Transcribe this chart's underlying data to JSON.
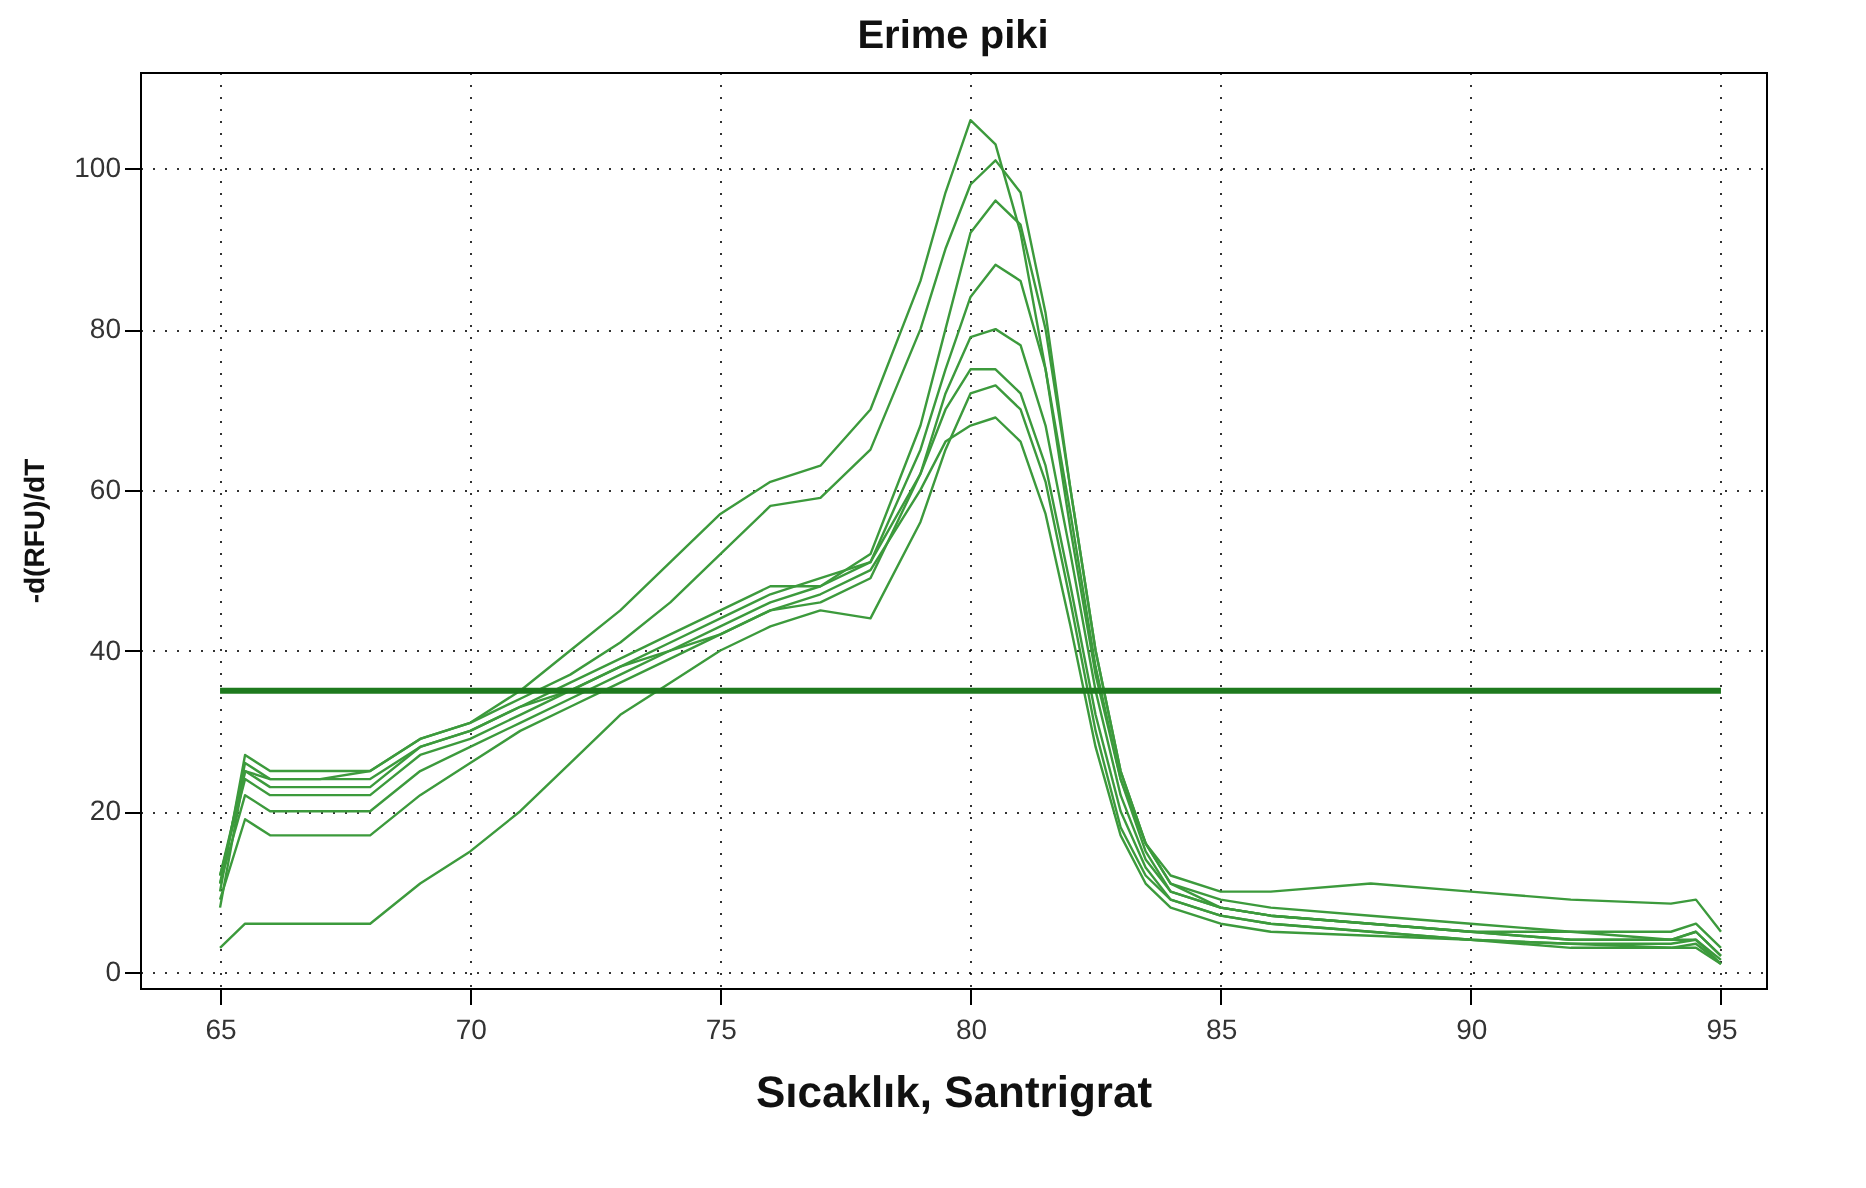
{
  "chart_data": {
    "type": "line",
    "title": "Erime piki",
    "xlabel": "Sıcaklık, Santrigrat",
    "ylabel": "-d(RFU)/dT",
    "x": [
      65,
      65.5,
      66,
      67,
      68,
      69,
      70,
      71,
      72,
      73,
      74,
      75,
      76,
      77,
      78,
      79,
      79.5,
      80,
      80.5,
      81,
      81.5,
      82,
      82.5,
      83,
      83.5,
      84,
      85,
      86,
      88,
      90,
      92,
      94,
      94.5,
      95
    ],
    "series": [
      {
        "color": "#3c9a3c",
        "values": [
          8,
          25,
          24,
          24,
          25,
          29,
          31,
          35,
          40,
          45,
          51,
          57,
          61,
          63,
          70,
          86,
          97,
          106,
          103,
          92,
          75,
          55,
          37,
          24,
          16,
          12,
          10,
          10,
          11,
          10,
          9,
          8.5,
          9,
          5
        ]
      },
      {
        "color": "#3c9a3c",
        "values": [
          10,
          27,
          25,
          25,
          25,
          29,
          31,
          34,
          37,
          41,
          46,
          52,
          58,
          59,
          65,
          80,
          90,
          98,
          101,
          97,
          82,
          60,
          40,
          25,
          16,
          11,
          9,
          8,
          7,
          6,
          5,
          5,
          6,
          3
        ]
      },
      {
        "color": "#3c9a3c",
        "values": [
          11,
          26,
          24,
          24,
          24,
          28,
          30,
          33,
          36,
          39,
          42,
          45,
          48,
          48,
          52,
          68,
          80,
          92,
          96,
          93,
          80,
          60,
          40,
          25,
          16,
          11,
          8,
          7,
          6,
          5,
          5,
          4,
          5,
          2
        ]
      },
      {
        "color": "#3c9a3c",
        "values": [
          12,
          25,
          23,
          23,
          23,
          28,
          30,
          33,
          35,
          38,
          41,
          44,
          47,
          49,
          51,
          65,
          75,
          84,
          88,
          86,
          75,
          57,
          38,
          24,
          15,
          10,
          8,
          7,
          6,
          5,
          4,
          4,
          5,
          2
        ]
      },
      {
        "color": "#3c9a3c",
        "values": [
          12,
          24,
          22,
          22,
          22,
          27,
          29,
          32,
          35,
          38,
          40,
          42,
          45,
          46,
          49,
          62,
          72,
          79,
          80,
          78,
          68,
          52,
          35,
          22,
          14,
          10,
          8,
          7,
          6,
          5,
          4,
          4,
          4,
          1.5
        ]
      },
      {
        "color": "#3c9a3c",
        "values": [
          11,
          22,
          20,
          20,
          20,
          25,
          28,
          31,
          34,
          37,
          40,
          43,
          46,
          48,
          51,
          62,
          70,
          75,
          75,
          72,
          63,
          48,
          32,
          20,
          13,
          9,
          7,
          6,
          5,
          4,
          3.5,
          3.5,
          4,
          1
        ]
      },
      {
        "color": "#3c9a3c",
        "values": [
          9,
          19,
          17,
          17,
          17,
          22,
          26,
          30,
          33,
          36,
          39,
          42,
          45,
          47,
          50,
          60,
          66,
          68,
          69,
          66,
          57,
          43,
          28,
          17,
          11,
          8,
          6,
          5,
          4.5,
          4,
          3,
          3,
          3.5,
          1
        ]
      },
      {
        "color": "#3c9a3c",
        "values": [
          3,
          6,
          6,
          6,
          6,
          11,
          15,
          20,
          26,
          32,
          36,
          40,
          43,
          45,
          44,
          56,
          65,
          72,
          73,
          70,
          61,
          46,
          30,
          18,
          12,
          9,
          7,
          6,
          5,
          4,
          3.5,
          3,
          3,
          1
        ]
      }
    ],
    "ref_lines": [
      {
        "axis": "y",
        "value": 35,
        "color": "#1e7a1e"
      }
    ],
    "xlim": [
      63.4,
      95.9
    ],
    "ylim": [
      -2,
      112
    ],
    "xticks": [
      65,
      70,
      75,
      80,
      85,
      90,
      95
    ],
    "yticks": [
      0,
      20,
      40,
      60,
      80,
      100
    ],
    "grid": true,
    "legend": false
  }
}
